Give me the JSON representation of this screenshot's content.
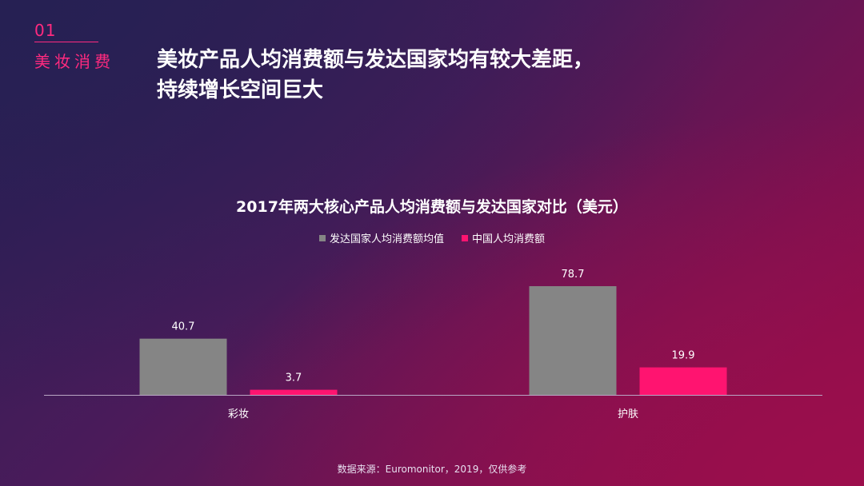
{
  "section": {
    "number": "01",
    "label": "美妆消费"
  },
  "headline": {
    "line1": "美妆产品人均消费额与发达国家均有较大差距，",
    "line2": "持续增长空间巨大"
  },
  "source_note": "数据来源：Euromonitor，2019，仅供参考",
  "chart_data": {
    "type": "bar",
    "title": "2017年两大核心产品人均消费额与发达国家对比（美元）",
    "categories": [
      "彩妆",
      "护肤"
    ],
    "series": [
      {
        "name": "发达国家人均消费额均值",
        "values": [
          40.7,
          78.7
        ],
        "color": "#858585"
      },
      {
        "name": "中国人均消费额",
        "values": [
          3.7,
          19.9
        ],
        "color": "#ff1470"
      }
    ],
    "xlabel": "",
    "ylabel": "",
    "ylim": [
      0,
      80
    ],
    "grid": false,
    "legend_position": "top-center"
  }
}
